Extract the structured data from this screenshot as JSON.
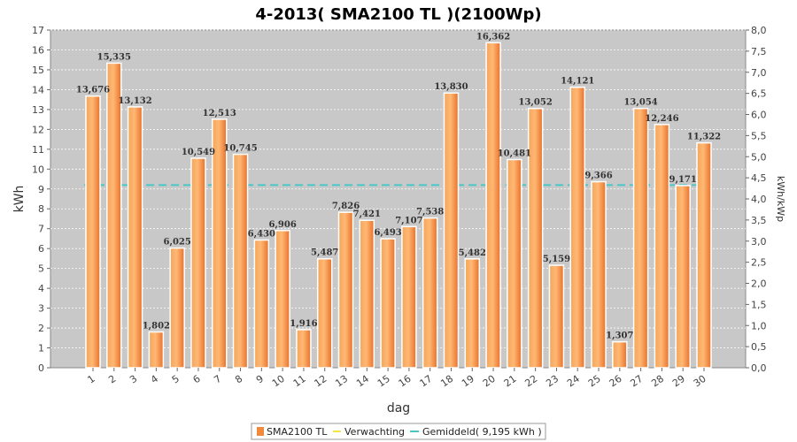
{
  "chart_data": {
    "type": "bar",
    "title": "4-2013( SMA2100 TL )(2100Wp)",
    "xlabel": "dag",
    "ylabel": "kWh",
    "y2label": "kWh/kWp",
    "ylim": [
      0,
      17
    ],
    "y2lim": [
      0,
      8.0
    ],
    "categories": [
      "1",
      "2",
      "3",
      "4",
      "5",
      "6",
      "7",
      "8",
      "9",
      "10",
      "11",
      "12",
      "13",
      "14",
      "15",
      "16",
      "17",
      "18",
      "19",
      "20",
      "21",
      "22",
      "23",
      "24",
      "25",
      "26",
      "27",
      "28",
      "29",
      "30"
    ],
    "series": [
      {
        "name": "SMA2100 TL",
        "values": [
          13.676,
          15.335,
          13.132,
          1.802,
          6.025,
          10.549,
          12.513,
          10.745,
          6.43,
          6.906,
          1.916,
          5.487,
          7.826,
          7.421,
          6.493,
          7.107,
          7.538,
          13.83,
          5.482,
          16.362,
          10.481,
          13.052,
          5.159,
          14.121,
          9.366,
          1.307,
          13.054,
          12.246,
          9.171,
          11.322
        ],
        "labels": [
          "13,676",
          "15,335",
          "13,132",
          "1,802",
          "6,025",
          "10,549",
          "12,513",
          "10,745",
          "6,430",
          "6,906",
          "1,916",
          "5,487",
          "7,826",
          "7,421",
          "6,493",
          "7,107",
          "7,538",
          "13,830",
          "5,482",
          "16,362",
          "10,481",
          "13,052",
          "5,159",
          "14,121",
          "9,366",
          "1,307",
          "13,054",
          "12,246",
          "9,171",
          "11,322"
        ],
        "color": "#f08a3c"
      }
    ],
    "average": {
      "name": "Gemiddeld( 9,195 kWh )",
      "value": 9.195,
      "color": "#49c6c6"
    },
    "expected": {
      "name": "Verwachting",
      "color": "#f5e642"
    },
    "yticks": [
      "0",
      "1",
      "2",
      "3",
      "4",
      "5",
      "6",
      "7",
      "8",
      "9",
      "10",
      "11",
      "12",
      "13",
      "14",
      "15",
      "16",
      "17"
    ],
    "y2ticks": [
      "0,0",
      "0,5",
      "1,0",
      "1,5",
      "2,0",
      "2,5",
      "3,0",
      "3,5",
      "4,0",
      "4,5",
      "5,0",
      "5,5",
      "6,0",
      "6,5",
      "7,0",
      "7,5",
      "8,0"
    ],
    "legend": [
      "SMA2100 TL",
      "Verwachting",
      "Gemiddeld( 9,195 kWh )"
    ],
    "grid": true,
    "legend_position": "bottom"
  }
}
